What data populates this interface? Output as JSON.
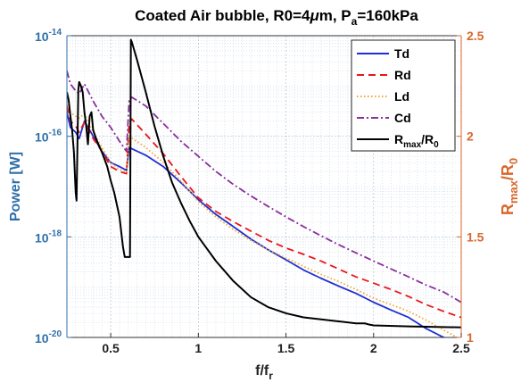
{
  "chart_data": {
    "type": "line",
    "title": {
      "main": "Coated Air bubble, R0=4",
      "mu": "μ",
      "mid": "m, P",
      "sub": "a",
      "tail": "=160kPa"
    },
    "xlabel": {
      "main": "f/f",
      "sub": "r"
    },
    "ylabel_left": "Power [W]",
    "ylabel_right": {
      "main": "R",
      "sub1": "max",
      "sep": "/R",
      "sub2": "0"
    },
    "xlim": [
      0.25,
      2.5
    ],
    "ylim_left": [
      1e-20,
      1e-14
    ],
    "ylim_right": [
      1,
      2.5
    ],
    "left_scale": "log",
    "grid": true,
    "legend_position": "top-right",
    "x_ticks": [
      {
        "value": 0.5,
        "label": "0.5"
      },
      {
        "value": 1,
        "label": "1"
      },
      {
        "value": 1.5,
        "label": "1.5"
      },
      {
        "value": 2,
        "label": "2"
      },
      {
        "value": 2.5,
        "label": "2.5"
      }
    ],
    "y_left_ticks": [
      {
        "value": 1e-20,
        "base": "10",
        "exp": "-20"
      },
      {
        "value": 1e-18,
        "base": "10",
        "exp": "-18"
      },
      {
        "value": 1e-16,
        "base": "10",
        "exp": "-16"
      },
      {
        "value": 1e-14,
        "base": "10",
        "exp": "-14"
      }
    ],
    "y_right_ticks": [
      {
        "value": 1,
        "label": "1"
      },
      {
        "value": 1.5,
        "label": "1.5"
      },
      {
        "value": 2,
        "label": "2"
      },
      {
        "value": 2.5,
        "label": "2.5"
      }
    ],
    "series": [
      {
        "name": "Td",
        "axis": "left",
        "color": "#1f2fd6",
        "dash": "solid",
        "points": [
          [
            0.25,
            3e-16
          ],
          [
            0.27,
            1.5e-16
          ],
          [
            0.3,
            1.2e-16
          ],
          [
            0.32,
            9e-17
          ],
          [
            0.35,
            2e-16
          ],
          [
            0.4,
            1e-16
          ],
          [
            0.45,
            5e-17
          ],
          [
            0.5,
            3e-17
          ],
          [
            0.55,
            2.5e-17
          ],
          [
            0.59,
            2.1e-17
          ],
          [
            0.605,
            6e-17
          ],
          [
            0.7,
            4.2e-17
          ],
          [
            0.8,
            2.5e-17
          ],
          [
            0.9,
            1.2e-17
          ],
          [
            1.0,
            5.5e-18
          ],
          [
            1.1,
            2.8e-18
          ],
          [
            1.2,
            1.6e-18
          ],
          [
            1.3,
            9e-19
          ],
          [
            1.4,
            5.5e-19
          ],
          [
            1.5,
            3.5e-19
          ],
          [
            1.6,
            2.2e-19
          ],
          [
            1.7,
            1.5e-19
          ],
          [
            1.8,
            1.05e-19
          ],
          [
            1.9,
            7.5e-20
          ],
          [
            2.0,
            5e-20
          ],
          [
            2.1,
            3.5e-20
          ],
          [
            2.2,
            2.5e-20
          ],
          [
            2.3,
            1.5e-20
          ],
          [
            2.4,
            1e-20
          ],
          [
            2.5,
            7e-21
          ]
        ]
      },
      {
        "name": "Rd",
        "axis": "left",
        "color": "#e8171b",
        "dash": "dashed",
        "points": [
          [
            0.25,
            4e-16
          ],
          [
            0.27,
            2e-16
          ],
          [
            0.3,
            1.6e-16
          ],
          [
            0.32,
            1.2e-16
          ],
          [
            0.35,
            1.9e-16
          ],
          [
            0.4,
            9e-17
          ],
          [
            0.45,
            5e-17
          ],
          [
            0.5,
            2.5e-17
          ],
          [
            0.55,
            2e-17
          ],
          [
            0.59,
            1.8e-17
          ],
          [
            0.605,
            1.8e-16
          ],
          [
            0.62,
            2.2e-16
          ],
          [
            0.7,
            1.1e-16
          ],
          [
            0.8,
            4.5e-17
          ],
          [
            0.9,
            1.6e-17
          ],
          [
            1.0,
            6e-18
          ],
          [
            1.1,
            3.2e-18
          ],
          [
            1.2,
            2e-18
          ],
          [
            1.3,
            1.3e-18
          ],
          [
            1.4,
            8.5e-19
          ],
          [
            1.5,
            6e-19
          ],
          [
            1.6,
            4.5e-19
          ],
          [
            1.7,
            3.3e-19
          ],
          [
            1.8,
            2.3e-19
          ],
          [
            1.9,
            1.6e-19
          ],
          [
            2.0,
            1.2e-19
          ],
          [
            2.1,
            9e-20
          ],
          [
            2.2,
            6.5e-20
          ],
          [
            2.3,
            4.5e-20
          ],
          [
            2.4,
            3.3e-20
          ],
          [
            2.5,
            2.5e-20
          ]
        ]
      },
      {
        "name": "Ld",
        "axis": "left",
        "color": "#f0a830",
        "dash": "dotted",
        "points": [
          [
            0.25,
            5e-16
          ],
          [
            0.27,
            3e-16
          ],
          [
            0.3,
            2.5e-16
          ],
          [
            0.32,
            2.3e-16
          ],
          [
            0.35,
            2.8e-16
          ],
          [
            0.4,
            1.2e-16
          ],
          [
            0.45,
            6e-17
          ],
          [
            0.5,
            3e-17
          ],
          [
            0.55,
            2.2e-17
          ],
          [
            0.59,
            1.9e-17
          ],
          [
            0.605,
            1e-16
          ],
          [
            0.7,
            6e-17
          ],
          [
            0.8,
            3e-17
          ],
          [
            0.9,
            1.3e-17
          ],
          [
            1.0,
            5e-18
          ],
          [
            1.1,
            2.5e-18
          ],
          [
            1.2,
            1.4e-18
          ],
          [
            1.3,
            8.5e-19
          ],
          [
            1.4,
            5.5e-19
          ],
          [
            1.5,
            3.8e-19
          ],
          [
            1.6,
            2.6e-19
          ],
          [
            1.7,
            1.8e-19
          ],
          [
            1.8,
            1.3e-19
          ],
          [
            1.9,
            9e-20
          ],
          [
            2.0,
            6e-20
          ],
          [
            2.1,
            4.5e-20
          ],
          [
            2.2,
            3.3e-20
          ],
          [
            2.3,
            2.2e-20
          ],
          [
            2.4,
            1.4e-20
          ],
          [
            2.5,
            9e-21
          ]
        ]
      },
      {
        "name": "Cd",
        "axis": "left",
        "color": "#8a2f9c",
        "dash": "dashdot",
        "points": [
          [
            0.25,
            2e-15
          ],
          [
            0.27,
            1.1e-15
          ],
          [
            0.3,
            8e-16
          ],
          [
            0.32,
            7e-16
          ],
          [
            0.35,
            1.1e-15
          ],
          [
            0.4,
            5e-16
          ],
          [
            0.45,
            2.5e-16
          ],
          [
            0.5,
            1.5e-16
          ],
          [
            0.55,
            8e-17
          ],
          [
            0.59,
            5e-17
          ],
          [
            0.605,
            5e-16
          ],
          [
            0.62,
            6e-16
          ],
          [
            0.7,
            4e-16
          ],
          [
            0.8,
            1.8e-16
          ],
          [
            0.9,
            8e-17
          ],
          [
            1.0,
            4e-17
          ],
          [
            1.1,
            2e-17
          ],
          [
            1.2,
            1.1e-17
          ],
          [
            1.3,
            6.5e-18
          ],
          [
            1.4,
            4e-18
          ],
          [
            1.5,
            2.5e-18
          ],
          [
            1.6,
            1.6e-18
          ],
          [
            1.7,
            1.05e-18
          ],
          [
            1.8,
            7e-19
          ],
          [
            1.9,
            4.8e-19
          ],
          [
            2.0,
            3.3e-19
          ],
          [
            2.1,
            2.3e-19
          ],
          [
            2.2,
            1.6e-19
          ],
          [
            2.3,
            1.1e-19
          ],
          [
            2.4,
            8e-20
          ],
          [
            2.5,
            5e-20
          ]
        ]
      },
      {
        "name": "R",
        "legend_sub1": "max",
        "legend_sep": "/R",
        "legend_sub2": "0",
        "axis": "right",
        "color": "#000000",
        "dash": "solid",
        "points": [
          [
            0.25,
            2.22
          ],
          [
            0.26,
            2.18
          ],
          [
            0.27,
            2.1
          ],
          [
            0.28,
            2.03
          ],
          [
            0.29,
            1.92
          ],
          [
            0.3,
            1.72
          ],
          [
            0.305,
            1.68
          ],
          [
            0.31,
            1.95
          ],
          [
            0.315,
            2.23
          ],
          [
            0.32,
            2.27
          ],
          [
            0.33,
            2.25
          ],
          [
            0.34,
            2.22
          ],
          [
            0.35,
            2.12
          ],
          [
            0.36,
            2.05
          ],
          [
            0.37,
            1.96
          ],
          [
            0.38,
            2.1
          ],
          [
            0.39,
            2.12
          ],
          [
            0.4,
            2.03
          ],
          [
            0.42,
            1.98
          ],
          [
            0.45,
            1.92
          ],
          [
            0.48,
            1.85
          ],
          [
            0.5,
            1.78
          ],
          [
            0.52,
            1.72
          ],
          [
            0.55,
            1.6
          ],
          [
            0.57,
            1.45
          ],
          [
            0.58,
            1.4
          ],
          [
            0.6,
            1.4
          ],
          [
            0.61,
            1.4
          ],
          [
            0.615,
            2.48
          ],
          [
            0.62,
            2.47
          ],
          [
            0.65,
            2.38
          ],
          [
            0.7,
            2.22
          ],
          [
            0.75,
            2.05
          ],
          [
            0.8,
            1.9
          ],
          [
            0.85,
            1.77
          ],
          [
            0.9,
            1.67
          ],
          [
            0.95,
            1.58
          ],
          [
            1.0,
            1.5
          ],
          [
            1.1,
            1.38
          ],
          [
            1.2,
            1.28
          ],
          [
            1.3,
            1.2
          ],
          [
            1.4,
            1.15
          ],
          [
            1.5,
            1.12
          ],
          [
            1.6,
            1.1
          ],
          [
            1.7,
            1.09
          ],
          [
            1.8,
            1.08
          ],
          [
            1.9,
            1.07
          ],
          [
            1.95,
            1.07
          ],
          [
            1.97,
            1.065
          ],
          [
            2.0,
            1.06
          ],
          [
            2.2,
            1.055
          ],
          [
            2.5,
            1.05
          ]
        ]
      }
    ]
  }
}
